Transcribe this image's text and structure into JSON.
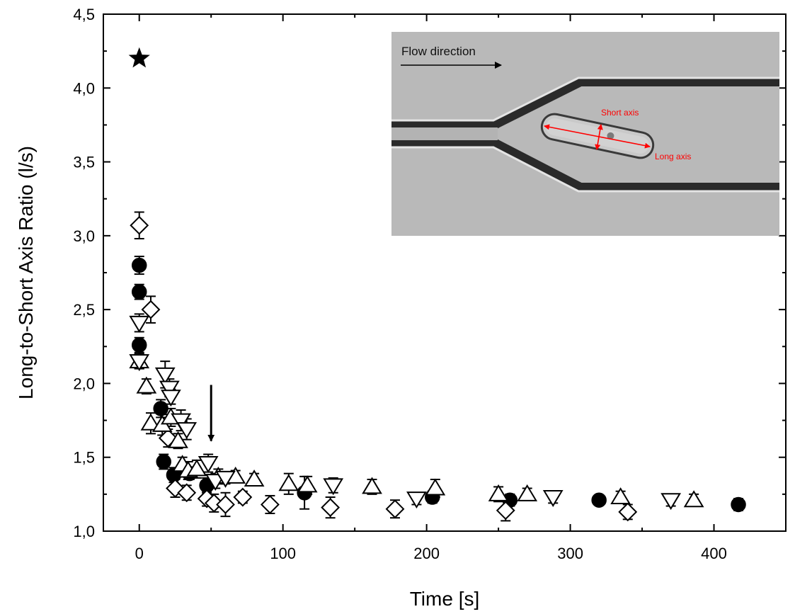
{
  "chart_data": {
    "type": "scatter",
    "title": "",
    "xlabel": "Time [s]",
    "ylabel": "Long-to-Short Axis Ratio (l/s)",
    "xlim": [
      -25,
      450
    ],
    "ylim": [
      1.0,
      4.5
    ],
    "x_ticks": [
      0,
      100,
      200,
      300,
      400
    ],
    "y_ticks": [
      "1,0",
      "1,5",
      "2,0",
      "2,5",
      "3,0",
      "3,5",
      "4,0",
      "4,5"
    ],
    "y_tick_values": [
      1.0,
      1.5,
      2.0,
      2.5,
      3.0,
      3.5,
      4.0,
      4.5
    ],
    "grid": false,
    "series": [
      {
        "marker": "star",
        "fill": "#000000",
        "points": [
          {
            "x": 0,
            "y": 4.2,
            "err": 0
          }
        ]
      },
      {
        "marker": "circle",
        "fill": "#000000",
        "points": [
          {
            "x": 0,
            "y": 2.8,
            "err": 0.06
          },
          {
            "x": 0,
            "y": 2.62,
            "err": 0.05
          },
          {
            "x": 0,
            "y": 2.26,
            "err": 0.05
          },
          {
            "x": 15,
            "y": 1.83,
            "err": 0.06
          },
          {
            "x": 17,
            "y": 1.47,
            "err": 0.05
          },
          {
            "x": 24,
            "y": 1.38,
            "err": 0.05
          },
          {
            "x": 35,
            "y": 1.39,
            "err": 0.04
          },
          {
            "x": 47,
            "y": 1.31,
            "err": 0.05
          },
          {
            "x": 115,
            "y": 1.26,
            "err": 0.11
          },
          {
            "x": 204,
            "y": 1.23,
            "err": 0.04
          },
          {
            "x": 258,
            "y": 1.21,
            "err": 0.04
          },
          {
            "x": 320,
            "y": 1.21,
            "err": 0.03
          },
          {
            "x": 417,
            "y": 1.18,
            "err": 0.04
          }
        ]
      },
      {
        "marker": "diamond",
        "fill": "#ffffff",
        "points": [
          {
            "x": 0,
            "y": 3.07,
            "err": 0.09
          },
          {
            "x": 8,
            "y": 2.5,
            "err": 0.09
          },
          {
            "x": 20,
            "y": 1.63,
            "err": 0.06
          },
          {
            "x": 25,
            "y": 1.29,
            "err": 0.06
          },
          {
            "x": 33,
            "y": 1.26,
            "err": 0.05
          },
          {
            "x": 47,
            "y": 1.22,
            "err": 0.05
          },
          {
            "x": 52,
            "y": 1.19,
            "err": 0.06
          },
          {
            "x": 60,
            "y": 1.18,
            "err": 0.08
          },
          {
            "x": 72,
            "y": 1.23,
            "err": 0.04
          },
          {
            "x": 91,
            "y": 1.18,
            "err": 0.06
          },
          {
            "x": 133,
            "y": 1.16,
            "err": 0.07
          },
          {
            "x": 178,
            "y": 1.15,
            "err": 0.06
          },
          {
            "x": 255,
            "y": 1.14,
            "err": 0.07
          },
          {
            "x": 340,
            "y": 1.13,
            "err": 0.05
          }
        ]
      },
      {
        "marker": "triangle-up",
        "fill": "#ffffff",
        "points": [
          {
            "x": 0,
            "y": 2.15,
            "err": 0.05
          },
          {
            "x": 5,
            "y": 1.98,
            "err": 0.05
          },
          {
            "x": 8,
            "y": 1.73,
            "err": 0.07
          },
          {
            "x": 16,
            "y": 1.72,
            "err": 0.07
          },
          {
            "x": 22,
            "y": 1.77,
            "err": 0.06
          },
          {
            "x": 27,
            "y": 1.61,
            "err": 0.05
          },
          {
            "x": 30,
            "y": 1.45,
            "err": 0.05
          },
          {
            "x": 34,
            "y": 1.41,
            "err": 0.06
          },
          {
            "x": 40,
            "y": 1.42,
            "err": 0.06
          },
          {
            "x": 55,
            "y": 1.37,
            "err": 0.05
          },
          {
            "x": 67,
            "y": 1.37,
            "err": 0.04
          },
          {
            "x": 80,
            "y": 1.35,
            "err": 0.04
          },
          {
            "x": 104,
            "y": 1.32,
            "err": 0.07
          },
          {
            "x": 117,
            "y": 1.31,
            "err": 0.06
          },
          {
            "x": 162,
            "y": 1.3,
            "err": 0.05
          },
          {
            "x": 206,
            "y": 1.29,
            "err": 0.06
          },
          {
            "x": 250,
            "y": 1.25,
            "err": 0.05
          },
          {
            "x": 270,
            "y": 1.25,
            "err": 0.04
          },
          {
            "x": 335,
            "y": 1.23,
            "err": 0.04
          },
          {
            "x": 386,
            "y": 1.21,
            "err": 0.04
          }
        ]
      },
      {
        "marker": "triangle-down",
        "fill": "#ffffff",
        "points": [
          {
            "x": 0,
            "y": 2.41,
            "err": 0.06
          },
          {
            "x": 0,
            "y": 2.15,
            "err": 0.05
          },
          {
            "x": 18,
            "y": 2.06,
            "err": 0.09
          },
          {
            "x": 21,
            "y": 1.97,
            "err": 0.06
          },
          {
            "x": 22,
            "y": 1.91,
            "err": 0.05
          },
          {
            "x": 29,
            "y": 1.75,
            "err": 0.07
          },
          {
            "x": 33,
            "y": 1.69,
            "err": 0.07
          },
          {
            "x": 48,
            "y": 1.46,
            "err": 0.06
          },
          {
            "x": 53,
            "y": 1.34,
            "err": 0.05
          },
          {
            "x": 60,
            "y": 1.36,
            "err": 0.04
          },
          {
            "x": 135,
            "y": 1.31,
            "err": 0.05
          },
          {
            "x": 193,
            "y": 1.22,
            "err": 0.04
          },
          {
            "x": 288,
            "y": 1.23,
            "err": 0.04
          },
          {
            "x": 370,
            "y": 1.21,
            "err": 0.04
          }
        ]
      }
    ],
    "annotation_arrow": {
      "x": 50,
      "y_from": 1.99,
      "y_to": 1.61
    }
  },
  "inset": {
    "flow_label": "Flow direction",
    "short_axis_label": "Short axis",
    "long_axis_label": "Long axis",
    "annotation_color": "#ff0000"
  }
}
